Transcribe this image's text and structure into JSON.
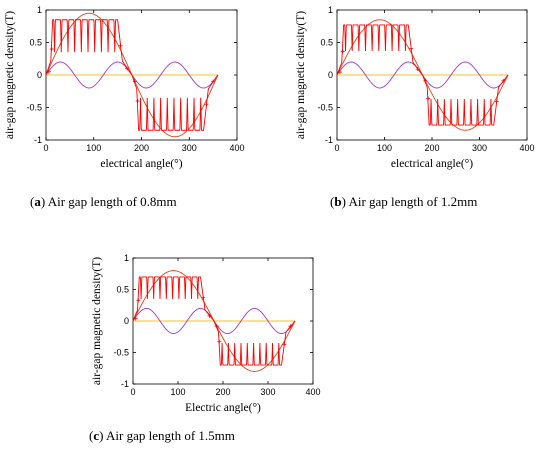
{
  "captions": {
    "a": {
      "letter": "a",
      "text": " Air gap length of 0.8mm"
    },
    "b": {
      "letter": "b",
      "text": " Air gap length of 1.2mm"
    },
    "c": {
      "letter": "c",
      "text": " Air gap length of 1.5mm"
    }
  },
  "colors": {
    "stepped": "#ff0000",
    "fundamental": "#e0451c",
    "armature": "#a238c8",
    "zero_line": "#f2c12e",
    "axes": "#000000"
  },
  "chart_data": [
    {
      "type": "line",
      "panel": "a",
      "xlabel": "electrical angle(°)",
      "ylabel": "air-gap magnetic density(T)",
      "xlim": [
        0,
        400
      ],
      "ylim": [
        -1,
        1
      ],
      "xticks": [
        0,
        100,
        200,
        300,
        400
      ],
      "yticks": [
        -1,
        -0.5,
        0,
        0.5,
        1
      ],
      "xtick_labels": [
        "0",
        "100",
        "200",
        "300",
        "400"
      ],
      "ytick_labels": [
        "-1",
        "-0.5",
        "0",
        "0.5",
        "1"
      ],
      "grid": false,
      "flat_top": 0.85,
      "fundamental_amplitude": 0.95,
      "harmonic_amplitude": 0.2,
      "slot_dip_depth": 0.5,
      "slot_positions": [
        18,
        32,
        46,
        60,
        74,
        88,
        102,
        116,
        130,
        144,
        198,
        212,
        226,
        240,
        254,
        268,
        282,
        296,
        310,
        324
      ],
      "x_end": 360
    },
    {
      "type": "line",
      "panel": "b",
      "xlabel": "electrical angle(°)",
      "ylabel": "air-gap magnetic density(T)",
      "xlim": [
        0,
        400
      ],
      "ylim": [
        -1,
        1
      ],
      "xticks": [
        0,
        100,
        200,
        300,
        400
      ],
      "yticks": [
        -1,
        -0.5,
        0,
        0.5,
        1
      ],
      "xtick_labels": [
        "0",
        "100",
        "200",
        "300",
        "400"
      ],
      "ytick_labels": [
        "-1",
        "-0.5",
        "0",
        "0.5",
        "1"
      ],
      "grid": false,
      "flat_top": 0.77,
      "fundamental_amplitude": 0.85,
      "harmonic_amplitude": 0.2,
      "slot_dip_depth": 0.4,
      "slot_positions": [
        18,
        32,
        46,
        60,
        74,
        88,
        102,
        116,
        130,
        144,
        198,
        212,
        226,
        240,
        254,
        268,
        282,
        296,
        310,
        324
      ],
      "x_end": 360
    },
    {
      "type": "line",
      "panel": "c",
      "xlabel": "Electric angle(°)",
      "ylabel": "air-gap magnetic density(T)",
      "xlim": [
        0,
        400
      ],
      "ylim": [
        -1,
        1
      ],
      "xticks": [
        0,
        100,
        200,
        300,
        400
      ],
      "yticks": [
        -1,
        -0.5,
        0,
        0.5,
        1
      ],
      "xtick_labels": [
        "0",
        "100",
        "200",
        "300",
        "400"
      ],
      "ytick_labels": [
        "-1",
        "-0.5",
        "0",
        "0.5",
        "1"
      ],
      "grid": false,
      "flat_top": 0.7,
      "fundamental_amplitude": 0.8,
      "harmonic_amplitude": 0.2,
      "slot_dip_depth": 0.35,
      "slot_positions": [
        18,
        32,
        46,
        60,
        74,
        88,
        102,
        116,
        130,
        144,
        198,
        212,
        226,
        240,
        254,
        268,
        282,
        296,
        310,
        324
      ],
      "x_end": 360
    }
  ]
}
